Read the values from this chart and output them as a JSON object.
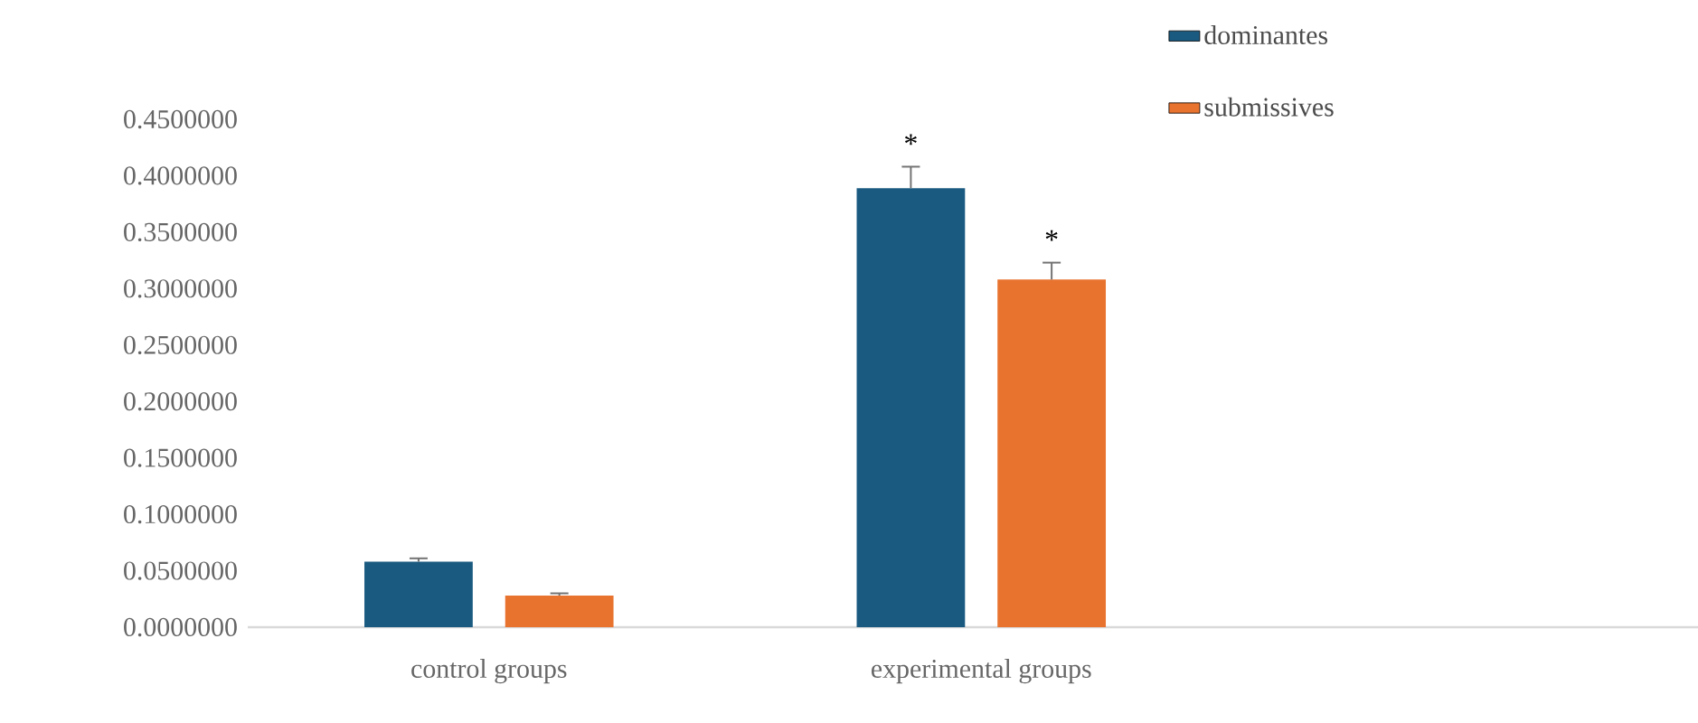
{
  "chart_data": {
    "type": "bar",
    "categories": [
      "control  groups",
      "experimental groups"
    ],
    "series": [
      {
        "name": "dominantes",
        "color": "#1a5a80",
        "values": [
          0.058,
          0.389
        ],
        "errors": [
          0.003,
          0.019
        ]
      },
      {
        "name": "submissives",
        "color": "#e8732f",
        "values": [
          0.028,
          0.308
        ],
        "errors": [
          0.002,
          0.015
        ]
      }
    ],
    "ylim": [
      0,
      0.45
    ],
    "yticks": [
      {
        "value": 0,
        "label": "0.0000000"
      },
      {
        "value": 0.05,
        "label": "0.0500000"
      },
      {
        "value": 0.1,
        "label": "0.1000000"
      },
      {
        "value": 0.15,
        "label": "0.1500000"
      },
      {
        "value": 0.2,
        "label": "0.2000000"
      },
      {
        "value": 0.25,
        "label": "0.2500000"
      },
      {
        "value": 0.3,
        "label": "0.3000000"
      },
      {
        "value": 0.35,
        "label": "0.3500000"
      },
      {
        "value": 0.4,
        "label": "0.4000000"
      },
      {
        "value": 0.45,
        "label": "0.4500000"
      }
    ],
    "annotations": [
      "*",
      "*"
    ],
    "legend": "top right"
  }
}
